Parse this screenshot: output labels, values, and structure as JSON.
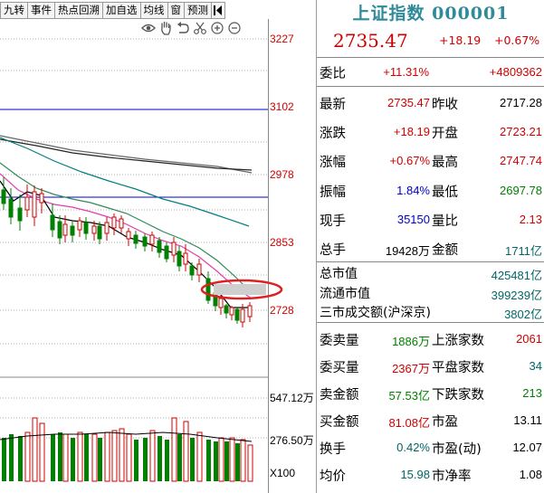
{
  "toolbar": {
    "tabs": [
      "九转",
      "事件",
      "热点回溯",
      "加自选",
      "均线",
      "窗",
      "预测"
    ],
    "end_icon": "panel-toggle-icon"
  },
  "chart_tools": [
    "eye-icon",
    "hand-icon",
    "undo-icon",
    "scissors-icon",
    "zoom-in-icon",
    "zoom-out-icon"
  ],
  "price_axis": [
    "3227",
    "3102",
    "2978",
    "2853",
    "2728"
  ],
  "volume_axis": [
    "547.12万",
    "276.50万",
    "X100"
  ],
  "colors": {
    "up": "#d00000",
    "down": "#008000",
    "title": "#2f8a9a",
    "ma5": "#000000",
    "ma10": "#e23db0",
    "ma20": "#2e8b57",
    "ma60": "#008080",
    "ma120": "#666666",
    "hline": "#0000cc",
    "highlight": "#e02020"
  },
  "quote": {
    "title": "上证指数 000001",
    "price": "2735.47",
    "change": "+18.19",
    "change_pct": "+0.67%"
  },
  "weibi": {
    "label": "委比",
    "pct": "+11.31%",
    "diff": "+4809362"
  },
  "stats": [
    {
      "l1": "最新",
      "v1": "2735.47",
      "c1": "red",
      "l2": "昨收",
      "v2": "2717.28",
      "c2": "blk"
    },
    {
      "l1": "涨跌",
      "v1": "+18.19",
      "c1": "red",
      "l2": "开盘",
      "v2": "2723.21",
      "c2": "red"
    },
    {
      "l1": "涨幅",
      "v1": "+0.67%",
      "c1": "red",
      "l2": "最高",
      "v2": "2747.74",
      "c2": "red"
    },
    {
      "l1": "振幅",
      "v1": "1.84%",
      "c1": "blue",
      "l2": "最低",
      "v2": "2697.78",
      "c2": "green"
    },
    {
      "l1": "现手",
      "v1": "35150",
      "c1": "blue",
      "l2": "量比",
      "v2": "2.13",
      "c2": "red"
    },
    {
      "l1": "总手",
      "v1": "19428万",
      "c1": "blk",
      "l2": "金额",
      "v2": "1711亿",
      "c2": "teal"
    }
  ],
  "market_values": [
    {
      "label": "总市值",
      "value": "425481亿"
    },
    {
      "label": "流通市值",
      "value": "399239亿"
    },
    {
      "label": "三市成交额(沪深京)",
      "value": "3802亿"
    }
  ],
  "breadth": [
    {
      "l1": "委卖量",
      "v1": "1886万",
      "c1": "green",
      "l2": "上涨家数",
      "v2": "2061",
      "c2": "red"
    },
    {
      "l1": "委买量",
      "v1": "2367万",
      "c1": "red",
      "l2": "平盘家数",
      "v2": "34",
      "c2": "teal"
    },
    {
      "l1": "卖金额",
      "v1": "57.53亿",
      "c1": "green",
      "l2": "下跌家数",
      "v2": "213",
      "c2": "green"
    },
    {
      "l1": "买金额",
      "v1": "81.08亿",
      "c1": "red",
      "l2": "市盈",
      "v2": "13.11",
      "c2": "blk"
    },
    {
      "l1": "换手",
      "v1": "0.42%",
      "c1": "teal",
      "l2": "市盈(动)",
      "v2": "12.07",
      "c2": "blk"
    },
    {
      "l1": "均价",
      "v1": "15.98",
      "c1": "teal",
      "l2": "市净率",
      "v2": "1.08",
      "c2": "blk"
    }
  ]
}
